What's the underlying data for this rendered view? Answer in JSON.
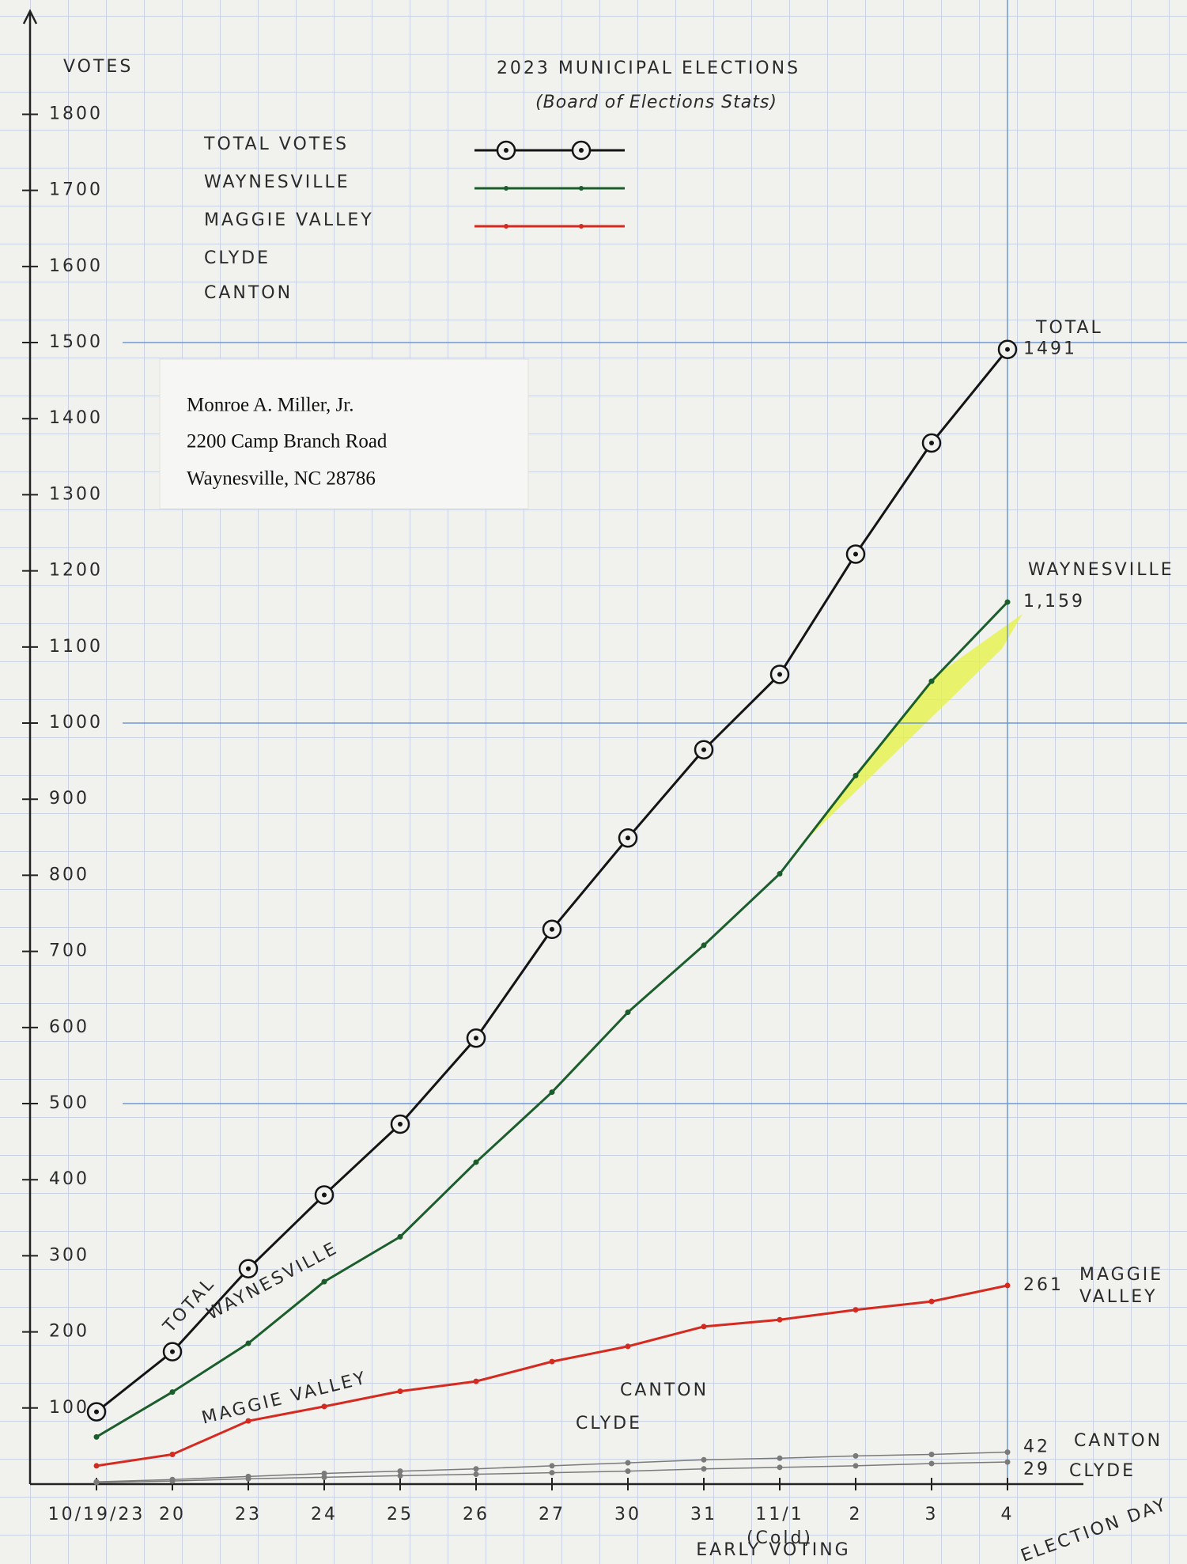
{
  "chart_data": {
    "type": "line",
    "title": "2023 MUNICIPAL ELECTIONS",
    "subtitle": "(Board of Elections Stats)",
    "y_label": "VOTES",
    "x_label": "EARLY VOTING",
    "categories": [
      "10/19/23",
      "20",
      "23",
      "24",
      "25",
      "26",
      "27",
      "30",
      "31",
      "11/1",
      "2",
      "3",
      "4"
    ],
    "category_notes": [
      null,
      null,
      null,
      null,
      null,
      null,
      null,
      null,
      null,
      "(Cold)",
      null,
      null,
      "ELECTION DAY"
    ],
    "series": [
      {
        "name": "TOTAL VOTES",
        "color": "#141414",
        "marker": "ring",
        "legend_line": true,
        "values": [
          95,
          174,
          283,
          380,
          473,
          586,
          729,
          849,
          965,
          1064,
          1222,
          1368,
          1491
        ],
        "value_labels": [
          null,
          null,
          null,
          null,
          null,
          null,
          null,
          null,
          null,
          null,
          null,
          null,
          "1491"
        ]
      },
      {
        "name": "WAYNESVILLE",
        "color": "#1b5e2c",
        "marker": "dot",
        "legend_line": true,
        "values": [
          62,
          121,
          185,
          266,
          325,
          423,
          515,
          620,
          708,
          802,
          931,
          1055,
          1159
        ],
        "value_labels": [
          null,
          null,
          null,
          null,
          null,
          null,
          null,
          null,
          null,
          null,
          null,
          null,
          "1,159"
        ]
      },
      {
        "name": "MAGGIE VALLEY",
        "color": "#d42a1f",
        "marker": "dot",
        "legend_line": true,
        "values": [
          24,
          39,
          83,
          102,
          122,
          135,
          161,
          181,
          207,
          216,
          229,
          240,
          261
        ],
        "value_labels": [
          null,
          null,
          null,
          null,
          null,
          null,
          null,
          null,
          null,
          null,
          null,
          null,
          "261"
        ]
      },
      {
        "name": "CLYDE",
        "color": "#7a7a7a",
        "marker": "dot",
        "legend_line": false,
        "values": [
          2,
          4,
          7,
          9,
          11,
          13,
          15,
          17,
          20,
          22,
          24,
          27,
          29
        ],
        "value_labels": [
          null,
          null,
          null,
          null,
          null,
          null,
          null,
          null,
          null,
          null,
          null,
          null,
          "29"
        ]
      },
      {
        "name": "CANTON",
        "color": "#7a7a7a",
        "marker": "dot",
        "legend_line": false,
        "values": [
          3,
          6,
          10,
          14,
          17,
          20,
          24,
          28,
          32,
          34,
          37,
          39,
          42
        ],
        "value_labels": [
          null,
          null,
          null,
          null,
          null,
          null,
          null,
          null,
          null,
          null,
          null,
          null,
          "42"
        ]
      }
    ],
    "end_labels": [
      "TOTAL",
      "WAYNESVILLE",
      "MAGGIE",
      "VALLEY",
      "CANTON",
      "CLYDE"
    ],
    "line_labels": [
      "TOTAL",
      "WAYNESVILLE",
      "MAGGIE VALLEY",
      "CANTON",
      "CLYDE"
    ],
    "ylim": [
      0,
      1920
    ],
    "yticks": [
      100,
      200,
      300,
      400,
      500,
      600,
      700,
      800,
      900,
      1000,
      1100,
      1200,
      1300,
      1400,
      1500,
      1600,
      1700,
      1800
    ],
    "major_gridlines": [
      500,
      1000,
      1500
    ],
    "grid": true
  },
  "address": [
    "Monroe A. Miller, Jr.",
    "2200 Camp Branch Road",
    "Waynesville, NC 28786"
  ]
}
